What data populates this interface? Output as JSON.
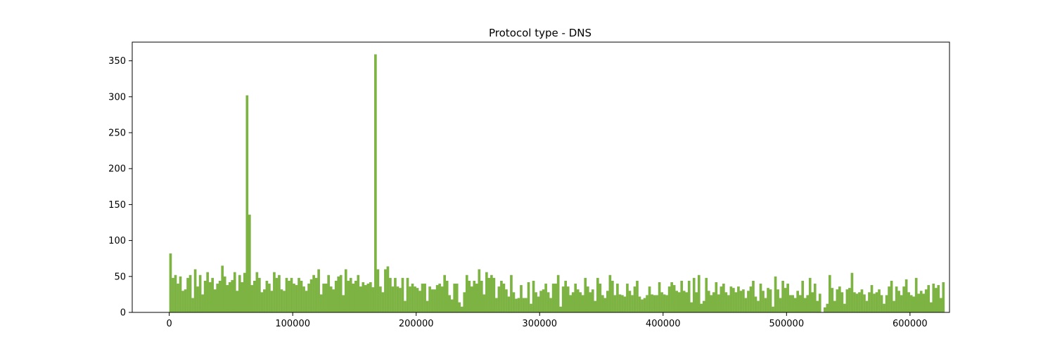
{
  "chart_data": {
    "type": "bar",
    "title": "Protocol type - DNS",
    "xlabel": "",
    "ylabel": "",
    "bar_color": "#7cb342",
    "xlim": [
      -30000,
      632000
    ],
    "ylim": [
      0,
      376
    ],
    "bin_start": 0,
    "bin_width": 2000,
    "x_ticks": [
      0,
      100000,
      200000,
      300000,
      400000,
      500000,
      600000
    ],
    "x_tick_labels": [
      "0",
      "100000",
      "200000",
      "300000",
      "400000",
      "500000",
      "600000"
    ],
    "y_ticks": [
      0,
      50,
      100,
      150,
      200,
      250,
      300,
      350
    ],
    "y_tick_labels": [
      "0",
      "50",
      "100",
      "150",
      "200",
      "250",
      "300",
      "350"
    ],
    "values": [
      82,
      48,
      52,
      40,
      50,
      30,
      32,
      48,
      52,
      20,
      60,
      36,
      52,
      25,
      44,
      56,
      42,
      48,
      32,
      40,
      44,
      65,
      50,
      38,
      42,
      45,
      56,
      30,
      52,
      42,
      55,
      302,
      136,
      38,
      44,
      56,
      48,
      28,
      32,
      44,
      40,
      30,
      56,
      48,
      52,
      32,
      30,
      48,
      44,
      48,
      40,
      38,
      48,
      44,
      36,
      30,
      40,
      46,
      52,
      48,
      60,
      25,
      40,
      40,
      52,
      36,
      32,
      44,
      50,
      52,
      24,
      60,
      44,
      48,
      40,
      44,
      52,
      36,
      42,
      38,
      40,
      42,
      35,
      359,
      60,
      36,
      28,
      60,
      64,
      48,
      36,
      48,
      36,
      34,
      48,
      16,
      48,
      36,
      40,
      36,
      34,
      30,
      40,
      40,
      16,
      36,
      32,
      32,
      38,
      40,
      36,
      52,
      44,
      24,
      18,
      40,
      40,
      14,
      8,
      28,
      52,
      44,
      36,
      44,
      40,
      60,
      44,
      25,
      56,
      48,
      52,
      48,
      20,
      36,
      44,
      40,
      32,
      22,
      52,
      28,
      19,
      20,
      38,
      20,
      20,
      42,
      12,
      44,
      28,
      22,
      30,
      32,
      40,
      28,
      20,
      40,
      40,
      52,
      8,
      36,
      44,
      36,
      24,
      28,
      40,
      32,
      28,
      24,
      48,
      36,
      28,
      32,
      16,
      48,
      40,
      24,
      20,
      30,
      52,
      44,
      24,
      40,
      25,
      24,
      22,
      40,
      30,
      24,
      36,
      44,
      22,
      18,
      20,
      24,
      36,
      25,
      24,
      24,
      42,
      28,
      25,
      24,
      36,
      42,
      38,
      30,
      28,
      44,
      30,
      28,
      44,
      14,
      48,
      28,
      52,
      12,
      16,
      48,
      30,
      24,
      28,
      42,
      25,
      36,
      40,
      28,
      24,
      36,
      34,
      28,
      36,
      30,
      32,
      20,
      30,
      36,
      44,
      22,
      16,
      40,
      30,
      20,
      34,
      32,
      8,
      50,
      32,
      20,
      44,
      34,
      40,
      24,
      24,
      20,
      30,
      24,
      44,
      20,
      24,
      48,
      28,
      40,
      16,
      26,
      0,
      7,
      12,
      52,
      34,
      16,
      32,
      36,
      28,
      12,
      32,
      34,
      55,
      28,
      26,
      28,
      32,
      25,
      16,
      28,
      38,
      26,
      28,
      32,
      24,
      12,
      24,
      36,
      44,
      16,
      36,
      30,
      24,
      36,
      46,
      28,
      24,
      22,
      48,
      26,
      30,
      26,
      32,
      38,
      14,
      40,
      34,
      38,
      20,
      42
    ]
  }
}
